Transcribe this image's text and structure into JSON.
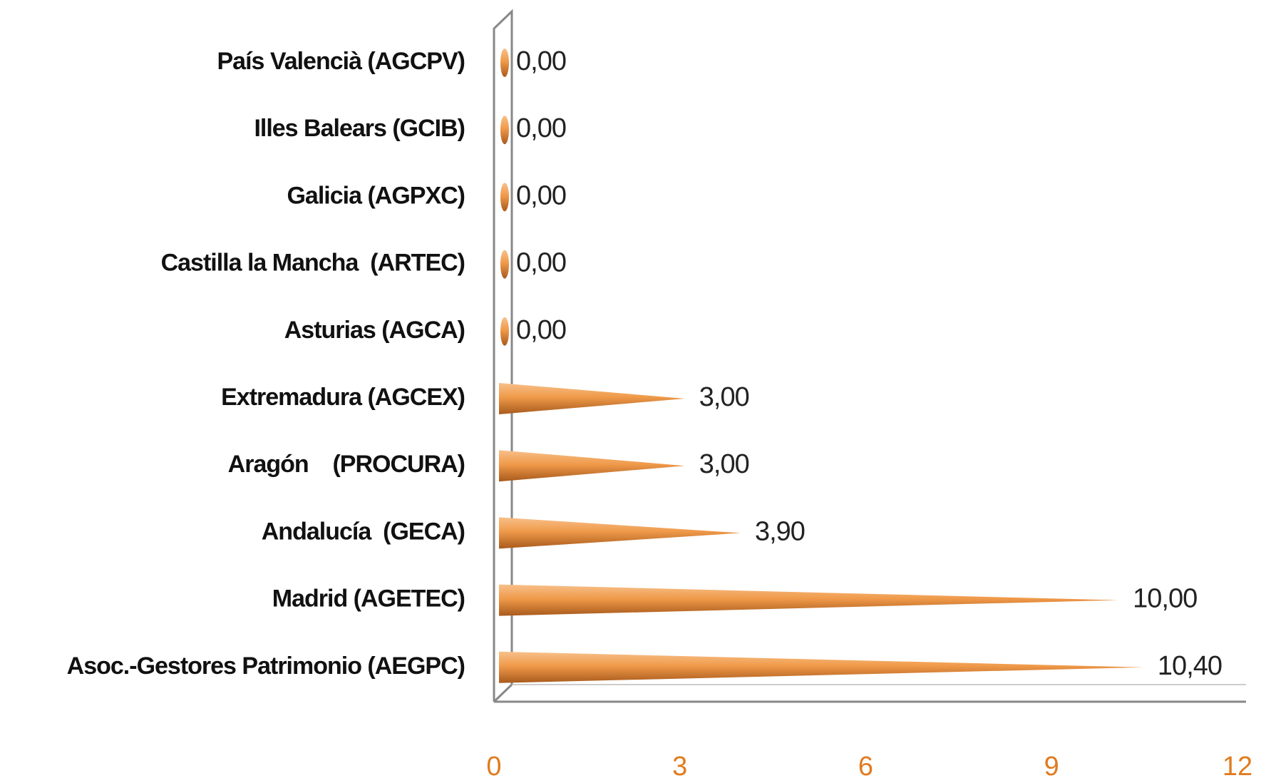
{
  "chart_data": {
    "type": "bar",
    "orientation": "horizontal",
    "mark_shape": "cone",
    "categories": [
      "País Valencià (AGCPV)",
      "Illes Balears (GCIB)",
      "Galicia (AGPXC)",
      "Castilla la Mancha  (ARTEC)",
      "Asturias (AGCA)",
      "Extremadura (AGCEX)",
      "Aragón    (PROCURA)",
      "Andalucía  (GECA)",
      "Madrid (AGETEC)",
      "Asoc.-Gestores Patrimonio (AEGPC)"
    ],
    "values": [
      0,
      0,
      0,
      0,
      0,
      3,
      3,
      3.9,
      10,
      10.4
    ],
    "value_labels": [
      "0,00",
      "0,00",
      "0,00",
      "0,00",
      "0,00",
      "3,00",
      "3,00",
      "3,90",
      "10,00",
      "10,40"
    ],
    "color": "#e8954a",
    "xlim": [
      0,
      12
    ],
    "xticks": [
      0,
      3,
      6,
      9,
      12
    ],
    "tick_color": "#e07b1f"
  }
}
